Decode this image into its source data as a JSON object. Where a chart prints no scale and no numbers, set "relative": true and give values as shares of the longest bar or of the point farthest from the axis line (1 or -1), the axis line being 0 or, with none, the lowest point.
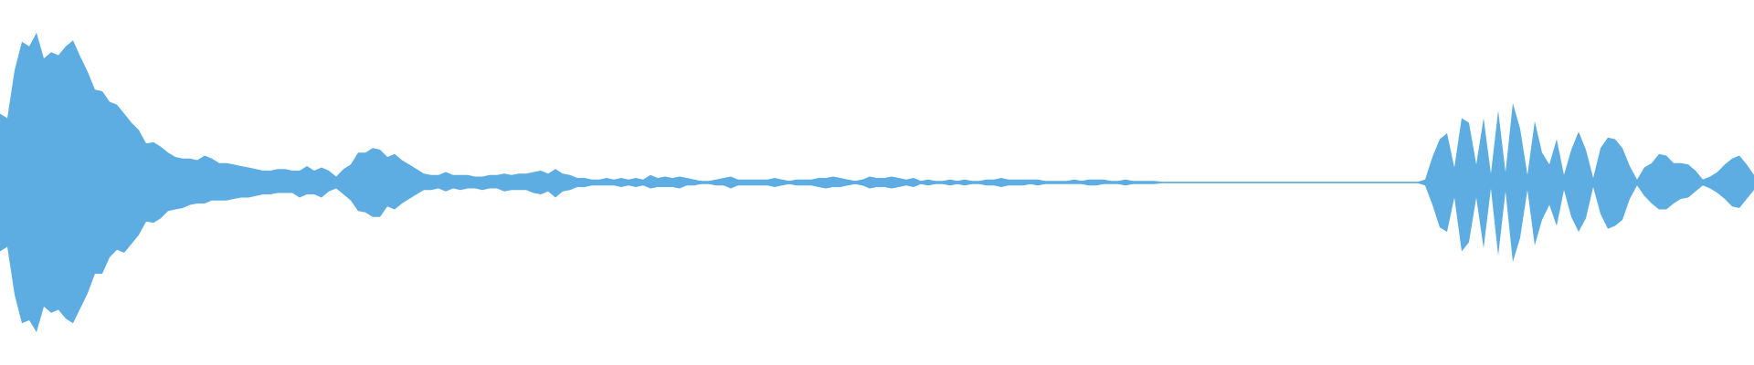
{
  "chart_data": {
    "type": "area",
    "relative": true,
    "tick_labels": false,
    "categories": [
      null,
      null,
      null,
      null,
      null,
      null,
      null,
      null,
      null,
      null,
      null,
      null,
      null,
      null,
      null,
      null,
      null,
      null,
      null,
      null,
      null,
      null,
      null,
      null,
      null,
      null,
      null,
      null,
      null,
      null,
      null,
      null,
      null,
      null,
      null,
      null,
      null,
      null,
      null,
      null,
      null,
      null,
      null,
      null,
      null,
      null,
      null,
      null,
      null,
      null,
      null,
      null,
      null,
      null,
      null,
      null,
      null,
      null,
      null,
      null,
      null,
      null,
      null,
      null,
      null,
      null,
      null,
      null,
      null,
      null,
      null,
      null,
      null,
      null,
      null,
      null,
      null,
      null,
      null,
      null,
      null,
      null,
      null,
      null,
      null,
      null,
      null,
      null,
      null,
      null,
      null,
      null,
      null,
      null,
      null,
      null,
      null,
      null,
      null,
      null,
      null,
      null,
      null,
      null,
      null,
      null,
      null,
      null,
      null,
      null,
      null,
      null,
      null,
      null,
      null,
      null,
      null,
      null,
      null,
      null,
      null,
      null,
      null,
      null,
      null,
      null,
      null,
      null,
      null,
      null,
      null,
      null,
      null,
      null,
      null,
      null,
      null,
      null,
      null,
      null,
      null,
      null,
      null,
      null,
      null,
      null,
      null,
      null,
      null,
      null,
      null,
      null,
      null,
      null,
      null,
      null,
      null,
      null,
      null,
      null,
      null,
      null,
      null,
      null,
      null,
      null,
      null,
      null,
      null,
      null,
      null,
      null,
      null,
      null,
      null,
      null,
      null,
      null,
      null,
      null,
      null,
      null,
      null,
      null,
      null,
      null,
      null,
      null,
      null,
      null,
      null,
      null,
      null,
      null,
      null,
      null,
      null,
      null,
      null,
      null,
      null,
      null,
      null,
      null,
      null,
      null,
      null,
      null,
      null,
      null,
      null,
      null,
      null,
      null,
      null,
      null,
      null,
      null,
      null,
      null,
      null,
      null,
      null,
      null,
      null,
      null,
      null,
      null,
      null,
      null,
      null,
      null,
      null,
      null,
      null,
      null,
      null,
      null,
      null,
      null,
      null
    ],
    "series": [
      {
        "color": "#5dade2",
        "values": [
          0.46,
          0.43,
          0.75,
          0.94,
          0.91,
          1.0,
          0.83,
          0.87,
          0.85,
          0.91,
          0.95,
          0.84,
          0.74,
          0.62,
          0.61,
          0.54,
          0.52,
          0.46,
          0.4,
          0.35,
          0.26,
          0.27,
          0.24,
          0.2,
          0.17,
          0.16,
          0.16,
          0.15,
          0.18,
          0.16,
          0.13,
          0.13,
          0.12,
          0.11,
          0.1,
          0.09,
          0.08,
          0.08,
          0.09,
          0.09,
          0.08,
          0.08,
          0.11,
          0.08,
          0.1,
          0.08,
          0.04,
          0.09,
          0.12,
          0.2,
          0.2,
          0.23,
          0.22,
          0.17,
          0.19,
          0.15,
          0.12,
          0.09,
          0.06,
          0.05,
          0.05,
          0.07,
          0.05,
          0.05,
          0.05,
          0.04,
          0.04,
          0.05,
          0.05,
          0.06,
          0.05,
          0.06,
          0.06,
          0.07,
          0.08,
          0.06,
          0.09,
          0.06,
          0.05,
          0.03,
          0.03,
          0.02,
          0.02,
          0.03,
          0.02,
          0.03,
          0.02,
          0.03,
          0.02,
          0.05,
          0.03,
          0.04,
          0.03,
          0.04,
          0.03,
          0.02,
          0.01,
          0.01,
          0.02,
          0.03,
          0.04,
          0.02,
          0.02,
          0.02,
          0.02,
          0.02,
          0.03,
          0.02,
          0.01,
          0.02,
          0.02,
          0.02,
          0.03,
          0.03,
          0.04,
          0.03,
          0.02,
          0.01,
          0.02,
          0.04,
          0.03,
          0.03,
          0.04,
          0.03,
          0.02,
          0.03,
          0.01,
          0.02,
          0.01,
          0.01,
          0.02,
          0.01,
          0.02,
          0.01,
          0.01,
          0.02,
          0.02,
          0.03,
          0.02,
          0.02,
          0.02,
          0.02,
          0.02,
          0.01,
          0.01,
          0.01,
          0.01,
          0.02,
          0.01,
          0.02,
          0.02,
          0.02,
          0.01,
          0.01,
          0.02,
          0.01,
          0.01,
          0.01,
          0.01,
          0.005,
          0.005,
          0.005,
          0.005,
          0.005,
          0.005,
          0.005,
          0.005,
          0.005,
          0.005,
          0.005,
          0.005,
          0.005,
          0.005,
          0.005,
          0.005,
          0.005,
          0.005,
          0.005,
          0.005,
          0.005,
          0.005,
          0.005,
          0.005,
          0.005,
          0.005,
          0.005,
          0.005,
          0.005,
          0.005,
          0.005,
          0.005,
          0.005,
          0.005,
          0.005,
          0.005,
          0.02,
          0.17,
          0.29,
          0.33,
          0.1,
          0.43,
          0.4,
          0.12,
          0.43,
          0.06,
          0.48,
          0.07,
          0.53,
          0.36,
          0.05,
          0.41,
          0.2,
          0.12,
          0.29,
          0.05,
          0.22,
          0.34,
          0.22,
          0.03,
          0.23,
          0.3,
          0.29,
          0.23,
          0.11,
          0.02,
          0.1,
          0.13,
          0.19,
          0.18,
          0.13,
          0.13,
          0.12,
          0.08,
          0.02,
          0.04,
          0.07,
          0.12,
          0.16,
          0.18,
          0.12,
          0.05
        ]
      },
      {
        "color": "#5eade2",
        "values": [
          -0.46,
          -0.43,
          -0.75,
          -0.94,
          -0.92,
          -1.0,
          -0.83,
          -0.87,
          -0.85,
          -0.91,
          -0.94,
          -0.84,
          -0.74,
          -0.61,
          -0.61,
          -0.5,
          -0.45,
          -0.47,
          -0.41,
          -0.35,
          -0.26,
          -0.27,
          -0.24,
          -0.19,
          -0.18,
          -0.17,
          -0.15,
          -0.14,
          -0.14,
          -0.12,
          -0.12,
          -0.12,
          -0.11,
          -0.1,
          -0.1,
          -0.09,
          -0.08,
          -0.08,
          -0.07,
          -0.07,
          -0.07,
          -0.1,
          -0.08,
          -0.08,
          -0.1,
          -0.06,
          -0.04,
          -0.08,
          -0.12,
          -0.19,
          -0.2,
          -0.23,
          -0.23,
          -0.16,
          -0.18,
          -0.14,
          -0.11,
          -0.08,
          -0.05,
          -0.05,
          -0.04,
          -0.06,
          -0.04,
          -0.05,
          -0.04,
          -0.04,
          -0.05,
          -0.04,
          -0.04,
          -0.06,
          -0.05,
          -0.05,
          -0.05,
          -0.07,
          -0.08,
          -0.06,
          -0.1,
          -0.06,
          -0.05,
          -0.03,
          -0.03,
          -0.02,
          -0.02,
          -0.02,
          -0.02,
          -0.03,
          -0.02,
          -0.03,
          -0.02,
          -0.04,
          -0.03,
          -0.03,
          -0.03,
          -0.04,
          -0.02,
          -0.02,
          -0.01,
          -0.01,
          -0.02,
          -0.02,
          -0.04,
          -0.02,
          -0.02,
          -0.02,
          -0.02,
          -0.02,
          -0.03,
          -0.02,
          -0.01,
          -0.02,
          -0.02,
          -0.02,
          -0.03,
          -0.04,
          -0.03,
          -0.03,
          -0.02,
          -0.01,
          -0.02,
          -0.04,
          -0.03,
          -0.03,
          -0.04,
          -0.03,
          -0.02,
          -0.03,
          -0.01,
          -0.02,
          -0.01,
          -0.01,
          -0.02,
          -0.01,
          -0.02,
          -0.01,
          -0.01,
          -0.02,
          -0.02,
          -0.03,
          -0.02,
          -0.02,
          -0.02,
          -0.01,
          -0.02,
          -0.01,
          -0.01,
          -0.01,
          -0.01,
          -0.01,
          -0.01,
          -0.02,
          -0.02,
          -0.01,
          -0.01,
          -0.01,
          -0.02,
          -0.01,
          -0.01,
          -0.01,
          -0.01,
          -0.005,
          -0.005,
          -0.005,
          -0.005,
          -0.005,
          -0.005,
          -0.005,
          -0.005,
          -0.005,
          -0.005,
          -0.005,
          -0.005,
          -0.005,
          -0.005,
          -0.005,
          -0.005,
          -0.005,
          -0.005,
          -0.005,
          -0.005,
          -0.005,
          -0.005,
          -0.005,
          -0.005,
          -0.005,
          -0.005,
          -0.005,
          -0.005,
          -0.005,
          -0.005,
          -0.005,
          -0.005,
          -0.005,
          -0.005,
          -0.005,
          -0.005,
          -0.02,
          -0.15,
          -0.3,
          -0.33,
          -0.1,
          -0.46,
          -0.4,
          -0.1,
          -0.44,
          -0.04,
          -0.49,
          -0.06,
          -0.53,
          -0.37,
          -0.05,
          -0.42,
          -0.25,
          -0.15,
          -0.29,
          -0.05,
          -0.23,
          -0.33,
          -0.24,
          -0.03,
          -0.21,
          -0.31,
          -0.29,
          -0.25,
          -0.11,
          -0.02,
          -0.09,
          -0.14,
          -0.18,
          -0.18,
          -0.14,
          -0.11,
          -0.1,
          -0.06,
          -0.02,
          -0.04,
          -0.07,
          -0.11,
          -0.16,
          -0.17,
          -0.11,
          -0.05
        ]
      }
    ]
  }
}
